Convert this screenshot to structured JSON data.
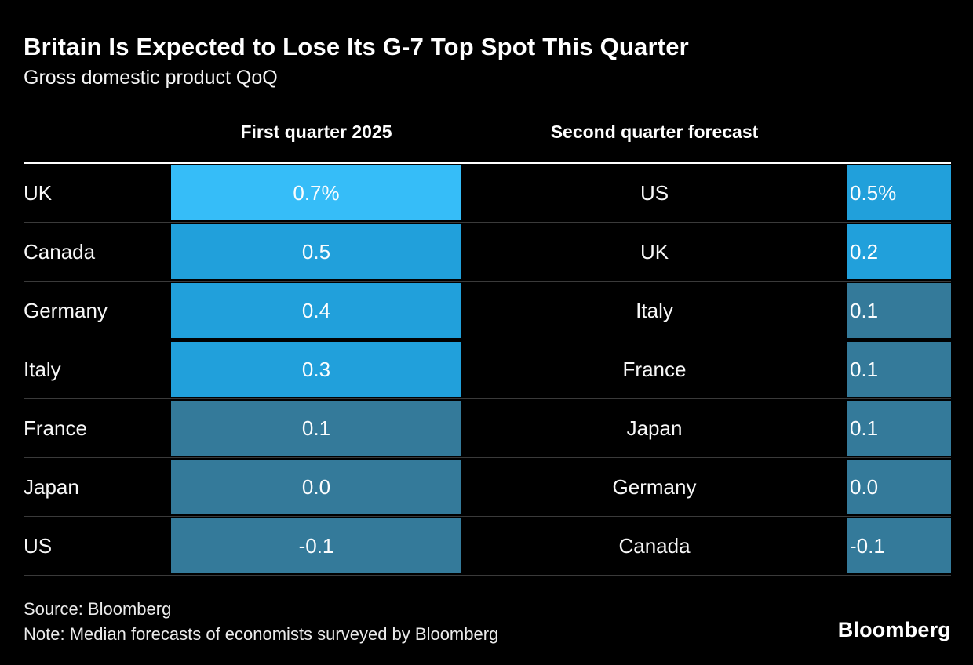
{
  "header": {
    "title": "Britain Is Expected to Lose Its G-7 Top Spot This Quarter",
    "subtitle": "Gross domestic product QoQ",
    "col1": "First quarter 2025",
    "col2": "Second quarter forecast"
  },
  "colors": {
    "background": "#000000",
    "bright_blue": "#36bdf8",
    "medium_blue": "#21a0db",
    "steel_blue": "#347a9a",
    "rule_white": "#ffffff",
    "row_divider": "#3a3a3a"
  },
  "rows": [
    {
      "left_country": "UK",
      "left_value": "0.7%",
      "left_color": "#36bdf8",
      "right_country": "US",
      "right_value": "0.5%",
      "right_color": "#21a0db"
    },
    {
      "left_country": "Canada",
      "left_value": "0.5",
      "left_color": "#21a0db",
      "right_country": "UK",
      "right_value": "0.2",
      "right_color": "#21a0db"
    },
    {
      "left_country": "Germany",
      "left_value": "0.4",
      "left_color": "#21a0db",
      "right_country": "Italy",
      "right_value": "0.1",
      "right_color": "#347a9a"
    },
    {
      "left_country": "Italy",
      "left_value": "0.3",
      "left_color": "#21a0db",
      "right_country": "France",
      "right_value": "0.1",
      "right_color": "#347a9a"
    },
    {
      "left_country": "France",
      "left_value": "0.1",
      "left_color": "#347a9a",
      "right_country": "Japan",
      "right_value": "0.1",
      "right_color": "#347a9a"
    },
    {
      "left_country": "Japan",
      "left_value": "0.0",
      "left_color": "#347a9a",
      "right_country": "Germany",
      "right_value": "0.0",
      "right_color": "#347a9a"
    },
    {
      "left_country": "US",
      "left_value": "-0.1",
      "left_color": "#347a9a",
      "right_country": "Canada",
      "right_value": "-0.1",
      "right_color": "#347a9a"
    }
  ],
  "footer": {
    "source": "Source: Bloomberg",
    "note": "Note: Median forecasts of economists surveyed by Bloomberg",
    "logo": "Bloomberg"
  },
  "chart_data": {
    "type": "table",
    "title": "Britain Is Expected to Lose Its G-7 Top Spot This Quarter",
    "subtitle": "Gross domestic product QoQ",
    "unit": "% QoQ",
    "layout": "two side-by-side ranked tables; equal-width cells whose blue shade encodes the value",
    "legend_position": "none",
    "series": [
      {
        "name": "First quarter 2025",
        "categories": [
          "UK",
          "Canada",
          "Germany",
          "Italy",
          "France",
          "Japan",
          "US"
        ],
        "values": [
          0.7,
          0.5,
          0.4,
          0.3,
          0.1,
          0.0,
          -0.1
        ]
      },
      {
        "name": "Second quarter forecast",
        "categories": [
          "US",
          "UK",
          "Italy",
          "France",
          "Japan",
          "Germany",
          "Canada"
        ],
        "values": [
          0.5,
          0.2,
          0.1,
          0.1,
          0.1,
          0.0,
          -0.1
        ]
      }
    ]
  }
}
